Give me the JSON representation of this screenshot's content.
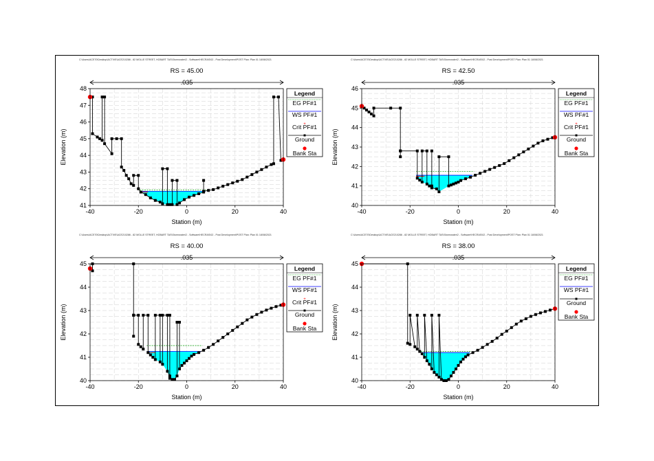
{
  "header_text": "C:\\Users\\ACE70\\Desktop\\ACTIVE\\ACE210286 - 82 MOLLE STREET, HOBART TAS\\Stormwater\\2 - Software\\HECRAS\\02 - Post Development\\POST     Plan: Plan 01   18/08/2021",
  "colors": {
    "water": "#00ffff",
    "ground": "#000000",
    "bank": "#ff0000",
    "eg": "#00a000",
    "ws": "#0000ff",
    "crit": "#ff0000"
  },
  "legend": {
    "title": "Legend",
    "eg": "EG PF#1",
    "ws": "WS PF#1",
    "crit": "Crit PF#1",
    "ground": "Ground",
    "bank": "Bank Sta"
  },
  "chart_data": [
    {
      "type": "line",
      "title": "RS = 45.00",
      "n_label": ".035",
      "xlabel": "Station (m)",
      "ylabel": "Elevation (m)",
      "xlim": [
        -40,
        40
      ],
      "ylim": [
        41,
        48
      ],
      "xticks": [
        -40,
        -20,
        0,
        20,
        40
      ],
      "yticks": [
        41,
        42,
        43,
        44,
        45,
        46,
        47,
        48
      ],
      "legend_items": [
        "EG",
        "WS",
        "Crit",
        "Ground",
        "Bank"
      ],
      "ws": 41.85,
      "eg": 41.92,
      "crit": 41.8,
      "ground": [
        [
          -40,
          47.5
        ],
        [
          -39,
          47.5
        ],
        [
          -39,
          45.3
        ],
        [
          -37,
          45.1
        ],
        [
          -36,
          45
        ],
        [
          -35,
          44.9
        ],
        [
          -35,
          47.5
        ],
        [
          -34,
          47.5
        ],
        [
          -34,
          44.7
        ],
        [
          -31,
          44.1
        ],
        [
          -31,
          45
        ],
        [
          -29,
          45
        ],
        [
          -27,
          45
        ],
        [
          -27,
          43.3
        ],
        [
          -26,
          43.1
        ],
        [
          -25,
          42.8
        ],
        [
          -24,
          42.6
        ],
        [
          -23,
          42.3
        ],
        [
          -22,
          42.2
        ],
        [
          -22,
          42.8
        ],
        [
          -20,
          42.8
        ],
        [
          -20,
          42
        ],
        [
          -19,
          41.8
        ],
        [
          -17,
          41.65
        ],
        [
          -15,
          41.45
        ],
        [
          -13,
          41.3
        ],
        [
          -11,
          41.2
        ],
        [
          -10,
          41.1
        ],
        [
          -10,
          43.2
        ],
        [
          -8,
          43.2
        ],
        [
          -8,
          41.05
        ],
        [
          -7,
          41.05
        ],
        [
          -6,
          41.05
        ],
        [
          -6,
          42.5
        ],
        [
          -4,
          42.5
        ],
        [
          -4,
          41.05
        ],
        [
          -3,
          41.15
        ],
        [
          -1,
          41.35
        ],
        [
          1,
          41.5
        ],
        [
          3,
          41.6
        ],
        [
          5,
          41.7
        ],
        [
          7,
          41.8
        ],
        [
          7,
          42.5
        ],
        [
          7,
          41.85
        ],
        [
          9,
          41.9
        ],
        [
          11,
          41.95
        ],
        [
          13,
          42.05
        ],
        [
          15,
          42.15
        ],
        [
          17,
          42.25
        ],
        [
          19,
          42.35
        ],
        [
          21,
          42.45
        ],
        [
          23,
          42.55
        ],
        [
          25,
          42.7
        ],
        [
          27,
          42.85
        ],
        [
          29,
          43
        ],
        [
          31,
          43.15
        ],
        [
          33,
          43.3
        ],
        [
          35,
          43.45
        ],
        [
          36,
          43.5
        ],
        [
          36,
          47.5
        ],
        [
          38,
          47.5
        ],
        [
          39,
          43.7
        ],
        [
          40,
          43.75
        ]
      ],
      "bank_stations": [
        [
          -40,
          47.5
        ],
        [
          40,
          43.75
        ]
      ]
    },
    {
      "type": "line",
      "title": "RS = 42.50",
      "n_label": ".035",
      "xlabel": "Station (m)",
      "ylabel": "Elevation (m)",
      "xlim": [
        -40,
        40
      ],
      "ylim": [
        40,
        46
      ],
      "xticks": [
        -40,
        -20,
        0,
        20,
        40
      ],
      "yticks": [
        40,
        41,
        42,
        43,
        44,
        45,
        46
      ],
      "legend_items": [
        "EG",
        "WS",
        "Crit",
        "Ground",
        "Bank"
      ],
      "ws": 41.55,
      "eg": 41.75,
      "crit": 41.5,
      "ground": [
        [
          -40,
          45.1
        ],
        [
          -39,
          45
        ],
        [
          -38,
          44.9
        ],
        [
          -37,
          44.8
        ],
        [
          -36,
          44.7
        ],
        [
          -35,
          44.6
        ],
        [
          -35,
          45
        ],
        [
          -28,
          45
        ],
        [
          -24,
          45
        ],
        [
          -24,
          42.8
        ],
        [
          -24,
          42.5
        ],
        [
          -24,
          42.8
        ],
        [
          -17,
          42.8
        ],
        [
          -17,
          41.4
        ],
        [
          -16,
          41.3
        ],
        [
          -15,
          41.2
        ],
        [
          -15,
          42.8
        ],
        [
          -13,
          42.8
        ],
        [
          -13,
          41.1
        ],
        [
          -12,
          41
        ],
        [
          -11,
          41
        ],
        [
          -11,
          42.8
        ],
        [
          -11,
          40.9
        ],
        [
          -9,
          40.85
        ],
        [
          -8,
          40.7
        ],
        [
          -8,
          42.5
        ],
        [
          -4,
          42.5
        ],
        [
          -4,
          41
        ],
        [
          -3,
          41.05
        ],
        [
          -2,
          41.1
        ],
        [
          -1,
          41.15
        ],
        [
          0,
          41.2
        ],
        [
          1,
          41.28
        ],
        [
          3,
          41.37
        ],
        [
          5,
          41.45
        ],
        [
          7,
          41.55
        ],
        [
          9,
          41.65
        ],
        [
          11,
          41.75
        ],
        [
          13,
          41.85
        ],
        [
          15,
          41.95
        ],
        [
          17,
          42.05
        ],
        [
          19,
          42.15
        ],
        [
          21,
          42.3
        ],
        [
          23,
          42.45
        ],
        [
          25,
          42.6
        ],
        [
          27,
          42.75
        ],
        [
          29,
          42.9
        ],
        [
          31,
          43.05
        ],
        [
          33,
          43.2
        ],
        [
          35,
          43.32
        ],
        [
          37,
          43.4
        ],
        [
          39,
          43.48
        ],
        [
          40,
          43.5
        ]
      ],
      "bank_stations": [
        [
          -40,
          45.1
        ],
        [
          40,
          43.5
        ]
      ]
    },
    {
      "type": "line",
      "title": "RS = 40.00",
      "n_label": ".035",
      "xlabel": "Station (m)",
      "ylabel": "Elevation (m)",
      "xlim": [
        -40,
        40
      ],
      "ylim": [
        40,
        45
      ],
      "xticks": [
        -40,
        -20,
        0,
        20,
        40
      ],
      "yticks": [
        40,
        41,
        42,
        43,
        44,
        45
      ],
      "legend_items": [
        "EG",
        "WS",
        "Crit",
        "Ground",
        "Bank"
      ],
      "ws": 41.25,
      "eg": 41.5,
      "crit": 41.2,
      "ground": [
        [
          -40,
          44.8
        ],
        [
          -39,
          44.7
        ],
        [
          -39,
          45
        ],
        [
          -22,
          45
        ],
        [
          -22,
          42.8
        ],
        [
          -22,
          41.9
        ],
        [
          -22,
          42.8
        ],
        [
          -20,
          42.8
        ],
        [
          -20,
          41.55
        ],
        [
          -19,
          41.45
        ],
        [
          -18,
          41.35
        ],
        [
          -18,
          42.8
        ],
        [
          -16,
          42.8
        ],
        [
          -16,
          41.2
        ],
        [
          -15,
          41.1
        ],
        [
          -14,
          41
        ],
        [
          -13,
          40.9
        ],
        [
          -13,
          42.8
        ],
        [
          -11,
          42.8
        ],
        [
          -11,
          40.8
        ],
        [
          -10,
          40.7
        ],
        [
          -10,
          42.8
        ],
        [
          -8,
          42.8
        ],
        [
          -8,
          40.4
        ],
        [
          -7,
          40.2
        ],
        [
          -7,
          42.8
        ],
        [
          -7,
          40.1
        ],
        [
          -6,
          40.05
        ],
        [
          -5,
          40.05
        ],
        [
          -4,
          40.2
        ],
        [
          -4,
          42.5
        ],
        [
          -3,
          42.5
        ],
        [
          -3,
          40.5
        ],
        [
          -2,
          40.65
        ],
        [
          -1,
          40.75
        ],
        [
          0,
          40.85
        ],
        [
          1,
          40.95
        ],
        [
          2,
          41.05
        ],
        [
          3,
          41.12
        ],
        [
          5,
          41.2
        ],
        [
          7,
          41.3
        ],
        [
          9,
          41.42
        ],
        [
          11,
          41.55
        ],
        [
          13,
          41.7
        ],
        [
          15,
          41.85
        ],
        [
          17,
          42
        ],
        [
          19,
          42.15
        ],
        [
          21,
          42.3
        ],
        [
          23,
          42.45
        ],
        [
          25,
          42.6
        ],
        [
          27,
          42.72
        ],
        [
          29,
          42.83
        ],
        [
          31,
          42.93
        ],
        [
          33,
          43.02
        ],
        [
          35,
          43.1
        ],
        [
          37,
          43.17
        ],
        [
          39,
          43.23
        ],
        [
          40,
          43.25
        ]
      ],
      "bank_stations": [
        [
          -40,
          44.8
        ],
        [
          40,
          43.25
        ]
      ]
    },
    {
      "type": "line",
      "title": "RS = 38.00",
      "n_label": ".035",
      "xlabel": "Station (m)",
      "ylabel": "Elevation (m)",
      "xlim": [
        -40,
        40
      ],
      "ylim": [
        40,
        45
      ],
      "xticks": [
        -40,
        -20,
        0,
        20,
        40
      ],
      "yticks": [
        40,
        41,
        42,
        43,
        44,
        45
      ],
      "legend_items": [
        "EG",
        "WS",
        "Ground",
        "Bank"
      ],
      "ws": 41.2,
      "eg": 41.25,
      "crit": null,
      "ground": [
        [
          -40,
          45
        ],
        [
          -21,
          45
        ],
        [
          -21,
          41.6
        ],
        [
          -20,
          41.55
        ],
        [
          -20,
          42.8
        ],
        [
          -18,
          41.45
        ],
        [
          -17,
          41.35
        ],
        [
          -17,
          42.8
        ],
        [
          -16,
          41.25
        ],
        [
          -15,
          41.15
        ],
        [
          -14,
          41
        ],
        [
          -14,
          42.8
        ],
        [
          -13,
          40.85
        ],
        [
          -12,
          40.7
        ],
        [
          -11,
          40.5
        ],
        [
          -11,
          42.8
        ],
        [
          -10,
          40.35
        ],
        [
          -9,
          40.25
        ],
        [
          -8,
          40.15
        ],
        [
          -8,
          42.8
        ],
        [
          -7,
          40.05
        ],
        [
          -6,
          40
        ],
        [
          -5,
          40
        ],
        [
          -4,
          40.05
        ],
        [
          -3,
          40.2
        ],
        [
          -2,
          40.35
        ],
        [
          -1,
          40.5
        ],
        [
          0,
          40.65
        ],
        [
          1,
          40.8
        ],
        [
          2,
          40.92
        ],
        [
          3,
          41.02
        ],
        [
          4,
          41.1
        ],
        [
          6,
          41.2
        ],
        [
          8,
          41.3
        ],
        [
          10,
          41.42
        ],
        [
          12,
          41.55
        ],
        [
          14,
          41.68
        ],
        [
          16,
          41.82
        ],
        [
          18,
          41.98
        ],
        [
          20,
          42.12
        ],
        [
          22,
          42.27
        ],
        [
          24,
          42.42
        ],
        [
          26,
          42.55
        ],
        [
          28,
          42.65
        ],
        [
          30,
          42.75
        ],
        [
          32,
          42.83
        ],
        [
          34,
          42.9
        ],
        [
          36,
          42.96
        ],
        [
          38,
          43.02
        ],
        [
          40,
          43.08
        ]
      ],
      "bank_stations": [
        [
          -40,
          45
        ],
        [
          40,
          43.08
        ]
      ]
    }
  ]
}
